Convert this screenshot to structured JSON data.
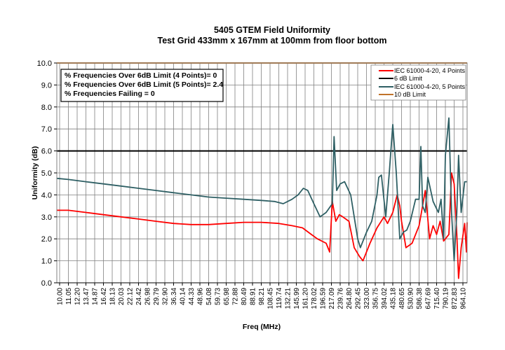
{
  "chart_data": {
    "type": "line",
    "title": "5405 GTEM Field Uniformity",
    "subtitle": "Test Grid 433mm x 167mm at 100mm from floor bottom",
    "xlabel": "Freq (MHz)",
    "ylabel": "Uniformity (dB)",
    "ylim": [
      0,
      10
    ],
    "yticks": [
      "0.0",
      "1.0",
      "2.0",
      "3.0",
      "4.0",
      "5.0",
      "6.0",
      "7.0",
      "8.0",
      "9.0",
      "10.0"
    ],
    "x_scale": "log (categorical tick labels)",
    "categories": [
      "10.00",
      "11.05",
      "12.20",
      "13.47",
      "14.87",
      "16.42",
      "18.13",
      "20.03",
      "22.12",
      "24.42",
      "26.98",
      "29.79",
      "32.90",
      "36.34",
      "40.14",
      "44.33",
      "48.96",
      "54.08",
      "59.73",
      "65.98",
      "72.88",
      "80.49",
      "88.91",
      "98.21",
      "108.45",
      "119.74",
      "132.21",
      "145.99",
      "161.20",
      "178.02",
      "196.59",
      "217.09",
      "239.76",
      "264.80",
      "292.45",
      "323.00",
      "356.75",
      "394.02",
      "435.18",
      "480.65",
      "530.90",
      "586.38",
      "647.69",
      "715.40",
      "790.19",
      "872.83",
      "964.10"
    ],
    "grid": true,
    "legend_position": "top-right",
    "annotations": [
      "% Frequencies  Over 6dB Limit (4 Points)= 0",
      "% Frequencies  Over 6dB Limit (5 Points)= 2.4",
      "% Frequencies  Failing  = 0"
    ],
    "series": [
      {
        "name": "IEC 61000-4-20, 4 Points",
        "color": "#ff0000",
        "x_index": [
          -0.3,
          1,
          3,
          5,
          7,
          9,
          11,
          13,
          15,
          17,
          19,
          21,
          23,
          25,
          26.5,
          27.7,
          28.7,
          29.4,
          30.4,
          30.8,
          31.1,
          31.5,
          31.9,
          32.3,
          33.0,
          33.4,
          33.6,
          34.2,
          34.6,
          35.4,
          36.2,
          37.0,
          37.4,
          38.0,
          38.5,
          38.8,
          39.0,
          39.5,
          40.2,
          41.0,
          41.4,
          41.7,
          42.2,
          42.6,
          43.0,
          43.4,
          43.8,
          44.4,
          44.7,
          45.0,
          45.3,
          45.5,
          45.8,
          46.2,
          46.4,
          46.6
        ],
        "values": [
          3.3,
          3.3,
          3.2,
          3.1,
          3.0,
          2.9,
          2.8,
          2.7,
          2.65,
          2.65,
          2.7,
          2.75,
          2.75,
          2.7,
          2.6,
          2.5,
          2.2,
          2.0,
          1.8,
          1.4,
          3.7,
          2.8,
          3.1,
          3.0,
          2.8,
          2.0,
          1.6,
          1.2,
          1.0,
          1.8,
          2.5,
          3.0,
          2.7,
          3.2,
          4.0,
          3.5,
          2.8,
          1.6,
          1.8,
          2.6,
          3.5,
          4.2,
          2.0,
          2.6,
          2.2,
          2.8,
          1.9,
          2.2,
          5.0,
          4.5,
          2.2,
          0.2,
          1.6,
          2.7,
          1.4,
          2.75
        ]
      },
      {
        "name": "6 dB Limit",
        "color": "#000000",
        "constant": 6.0
      },
      {
        "name": "IEC 61000-4-20, 5 Points",
        "color": "#2e5f64",
        "x_index": [
          -0.3,
          1,
          3,
          5,
          7,
          9,
          11,
          13,
          15,
          17,
          19,
          21,
          23,
          24.5,
          25.5,
          26.5,
          27.2,
          27.8,
          28.3,
          29.0,
          29.7,
          30.4,
          31.1,
          31.3,
          31.6,
          32.0,
          32.5,
          33.2,
          34.0,
          34.3,
          35.0,
          35.6,
          36.2,
          36.4,
          36.7,
          37.2,
          37.6,
          38.0,
          38.4,
          38.8,
          39.2,
          39.6,
          40.0,
          40.6,
          41.0,
          41.2,
          41.4,
          41.7,
          42.0,
          42.6,
          43.2,
          43.5,
          43.8,
          44.0,
          44.4,
          44.7,
          45.0,
          45.3,
          45.5,
          45.8,
          46.2,
          46.5,
          46.6
        ],
        "values": [
          4.75,
          4.7,
          4.6,
          4.5,
          4.4,
          4.3,
          4.2,
          4.1,
          4.0,
          3.9,
          3.85,
          3.8,
          3.75,
          3.7,
          3.6,
          3.8,
          4.0,
          4.3,
          4.2,
          3.6,
          3.0,
          3.2,
          3.6,
          6.65,
          4.2,
          4.5,
          4.6,
          4.0,
          2.0,
          1.6,
          2.3,
          2.8,
          4.0,
          4.8,
          4.9,
          3.0,
          5.0,
          7.2,
          5.0,
          2.0,
          2.3,
          2.4,
          2.8,
          3.8,
          3.8,
          6.2,
          3.5,
          3.2,
          4.8,
          3.7,
          3.2,
          3.8,
          2.0,
          5.8,
          7.5,
          3.2,
          1.0,
          3.2,
          5.8,
          3.2,
          4.6,
          4.6,
          4.6
        ]
      },
      {
        "name": "10 dB Limit",
        "color": "#c0732a",
        "constant": 10.0
      }
    ]
  }
}
